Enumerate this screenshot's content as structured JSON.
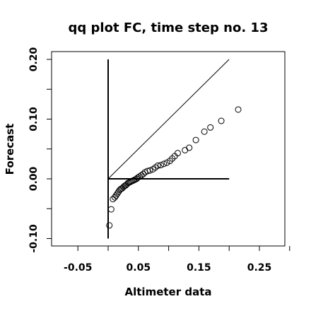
{
  "chart_data": {
    "type": "scatter",
    "title": "qq plot FC, time step no. 13",
    "xlabel": "Altimeter data",
    "ylabel": "Forecast",
    "xlim": [
      -0.1,
      0.32
    ],
    "ylim": [
      -0.11,
      0.215
    ],
    "x_ticks": [
      -0.05,
      0.05,
      0.15,
      0.25
    ],
    "x_tick_labels": [
      "-0.05",
      "0.05",
      "0.15",
      "0.25"
    ],
    "y_ticks": [
      -0.1,
      0.0,
      0.1,
      0.2
    ],
    "y_tick_labels": [
      "-0.10",
      "0.00",
      "0.10",
      "0.20"
    ],
    "x_minor_ticks": [
      0.0,
      0.1,
      0.2,
      0.3
    ],
    "y_minor_ticks": [
      -0.05,
      0.05,
      0.15
    ],
    "grid": false,
    "reference_lines": [
      {
        "kind": "vertical",
        "x": 0.0,
        "y_from": -0.1,
        "y_to": 0.2,
        "width": "thick"
      },
      {
        "kind": "horizontal",
        "y": 0.0,
        "x_from": 0.0,
        "x_to": 0.2,
        "width": "thick"
      },
      {
        "kind": "diagonal",
        "from": [
          0.0,
          0.0
        ],
        "to": [
          0.2,
          0.2
        ],
        "width": "thin"
      }
    ],
    "points": [
      {
        "x": 0.002,
        "y": -0.078
      },
      {
        "x": 0.005,
        "y": -0.051
      },
      {
        "x": 0.008,
        "y": -0.034
      },
      {
        "x": 0.011,
        "y": -0.031
      },
      {
        "x": 0.013,
        "y": -0.028
      },
      {
        "x": 0.015,
        "y": -0.025
      },
      {
        "x": 0.017,
        "y": -0.022
      },
      {
        "x": 0.019,
        "y": -0.019
      },
      {
        "x": 0.021,
        "y": -0.017
      },
      {
        "x": 0.023,
        "y": -0.016
      },
      {
        "x": 0.025,
        "y": -0.014
      },
      {
        "x": 0.027,
        "y": -0.012
      },
      {
        "x": 0.029,
        "y": -0.011
      },
      {
        "x": 0.031,
        "y": -0.009
      },
      {
        "x": 0.033,
        "y": -0.007
      },
      {
        "x": 0.035,
        "y": -0.006
      },
      {
        "x": 0.037,
        "y": -0.005
      },
      {
        "x": 0.039,
        "y": -0.004
      },
      {
        "x": 0.041,
        "y": -0.003
      },
      {
        "x": 0.043,
        "y": -0.002
      },
      {
        "x": 0.045,
        "y": -0.001
      },
      {
        "x": 0.047,
        "y": 0.0
      },
      {
        "x": 0.049,
        "y": 0.002
      },
      {
        "x": 0.052,
        "y": 0.004
      },
      {
        "x": 0.055,
        "y": 0.006
      },
      {
        "x": 0.058,
        "y": 0.008
      },
      {
        "x": 0.061,
        "y": 0.011
      },
      {
        "x": 0.065,
        "y": 0.013
      },
      {
        "x": 0.069,
        "y": 0.014
      },
      {
        "x": 0.074,
        "y": 0.016
      },
      {
        "x": 0.078,
        "y": 0.019
      },
      {
        "x": 0.082,
        "y": 0.022
      },
      {
        "x": 0.087,
        "y": 0.023
      },
      {
        "x": 0.092,
        "y": 0.025
      },
      {
        "x": 0.097,
        "y": 0.027
      },
      {
        "x": 0.102,
        "y": 0.03
      },
      {
        "x": 0.106,
        "y": 0.034
      },
      {
        "x": 0.11,
        "y": 0.038
      },
      {
        "x": 0.115,
        "y": 0.043
      },
      {
        "x": 0.127,
        "y": 0.048
      },
      {
        "x": 0.134,
        "y": 0.052
      },
      {
        "x": 0.145,
        "y": 0.065
      },
      {
        "x": 0.159,
        "y": 0.079
      },
      {
        "x": 0.169,
        "y": 0.086
      },
      {
        "x": 0.187,
        "y": 0.097
      },
      {
        "x": 0.215,
        "y": 0.116
      }
    ]
  }
}
